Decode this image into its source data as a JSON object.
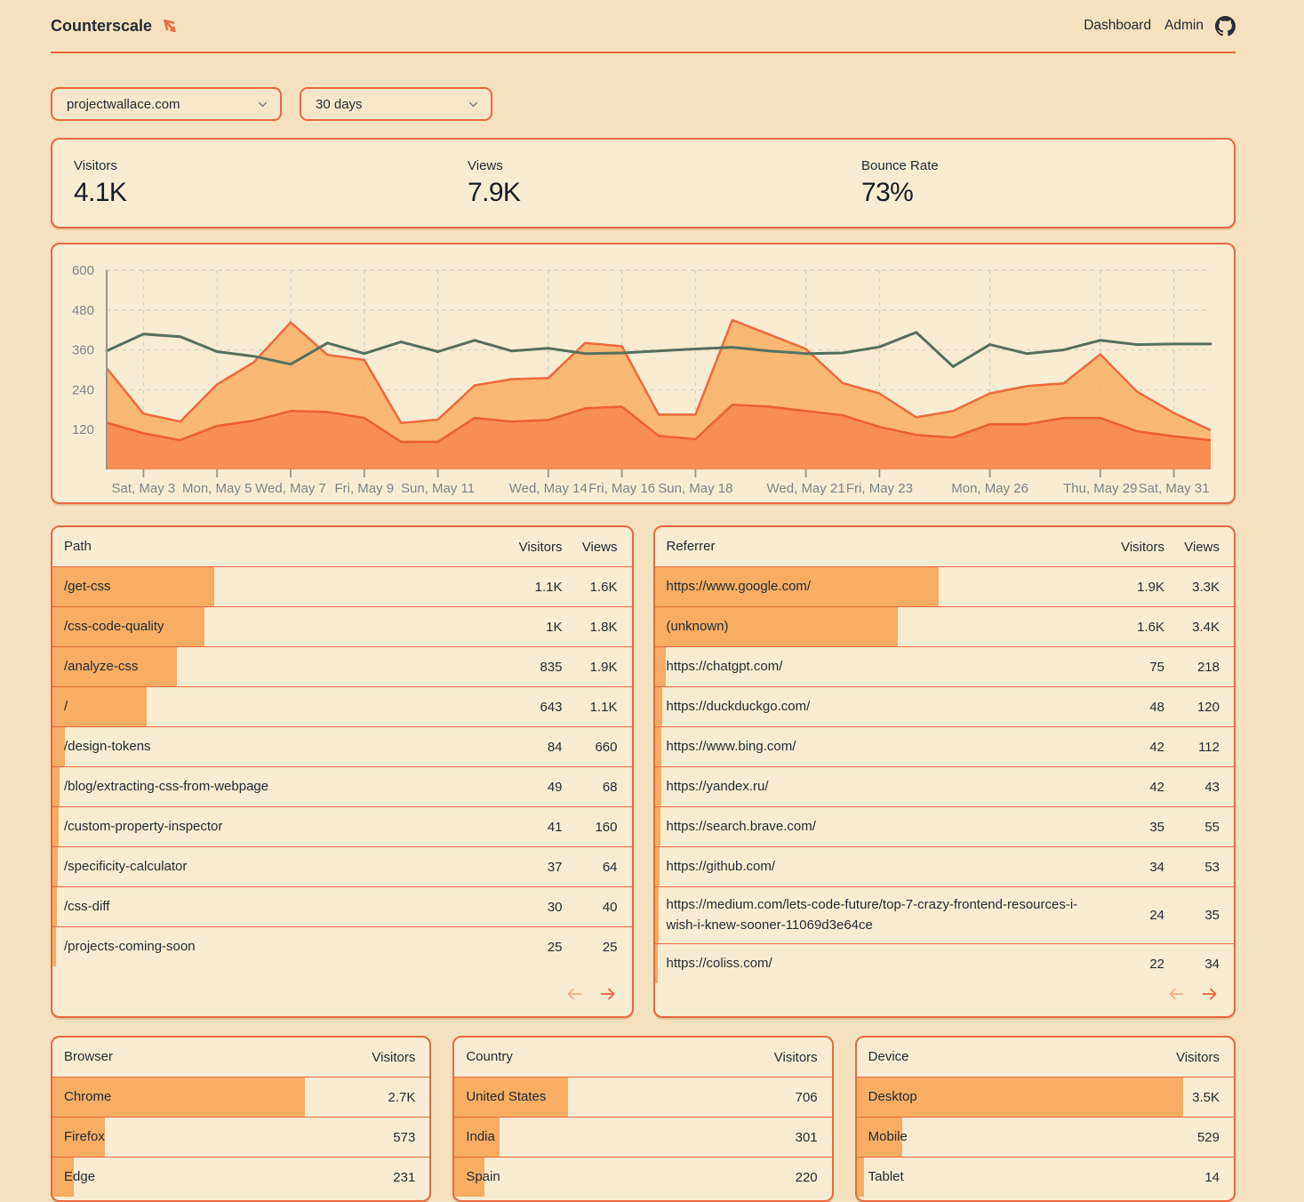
{
  "header": {
    "brand": "Counterscale",
    "nav": [
      {
        "label": "Dashboard"
      },
      {
        "label": "Admin"
      }
    ]
  },
  "controls": {
    "site": "projectwallace.com",
    "range": "30 days"
  },
  "stats": [
    {
      "label": "Visitors",
      "value": "4.1K"
    },
    {
      "label": "Views",
      "value": "7.9K"
    },
    {
      "label": "Bounce Rate",
      "value": "73%"
    }
  ],
  "chart_data": {
    "type": "area+line",
    "title": "",
    "xlabel": "date",
    "ylabel": "",
    "ylim": [
      0,
      600
    ],
    "yticks": [
      120,
      240,
      360,
      480,
      600
    ],
    "grid": true,
    "x_ticks": [
      {
        "index": 1,
        "label": "Sat, May 3"
      },
      {
        "index": 3,
        "label": "Mon, May 5"
      },
      {
        "index": 5,
        "label": "Wed, May 7"
      },
      {
        "index": 7,
        "label": "Fri, May 9"
      },
      {
        "index": 9,
        "label": "Sun, May 11"
      },
      {
        "index": 12,
        "label": "Wed, May 14"
      },
      {
        "index": 14,
        "label": "Fri, May 16"
      },
      {
        "index": 16,
        "label": "Sun, May 18"
      },
      {
        "index": 19,
        "label": "Wed, May 21"
      },
      {
        "index": 21,
        "label": "Fri, May 23"
      },
      {
        "index": 24,
        "label": "Mon, May 26"
      },
      {
        "index": 27,
        "label": "Thu, May 29"
      },
      {
        "index": 29,
        "label": "Sat, May 31"
      }
    ],
    "series": [
      {
        "name": "light-orange-area (views)",
        "type": "area",
        "fill": "#F8B269",
        "stroke": "#EE6A3C",
        "values": [
          305,
          168,
          144,
          256,
          323,
          443,
          345,
          330,
          140,
          150,
          253,
          272,
          275,
          381,
          371,
          165,
          165,
          450,
          407,
          363,
          260,
          229,
          157,
          176,
          229,
          251,
          259,
          347,
          234,
          170,
          118
        ]
      },
      {
        "name": "dark-orange-area (visitors)",
        "type": "area",
        "fill": "#F68A50",
        "stroke": "#EC5F33",
        "values": [
          141,
          109,
          88,
          131,
          147,
          176,
          173,
          155,
          83,
          83,
          155,
          144,
          149,
          184,
          189,
          101,
          91,
          195,
          189,
          176,
          163,
          128,
          104,
          96,
          136,
          136,
          155,
          155,
          115,
          100,
          88
        ]
      },
      {
        "name": "teal-line",
        "type": "line",
        "stroke": "#54705F",
        "values": [
          357,
          408,
          400,
          355,
          341,
          317,
          381,
          349,
          384,
          355,
          389,
          357,
          365,
          349,
          351,
          357,
          363,
          368,
          357,
          349,
          351,
          369,
          413,
          310,
          376,
          349,
          360,
          389,
          376,
          378,
          378
        ]
      }
    ],
    "legend": "none"
  },
  "tables": {
    "path": {
      "title": "Path",
      "columns": [
        "Visitors",
        "Views"
      ],
      "pagination": true,
      "rows": [
        {
          "label": "/get-css",
          "values": [
            "1.1K",
            "1.6K"
          ],
          "bar_pct": 28
        },
        {
          "label": "/css-code-quality",
          "values": [
            "1K",
            "1.8K"
          ],
          "bar_pct": 26.3
        },
        {
          "label": "/analyze-css",
          "values": [
            "835",
            "1.9K"
          ],
          "bar_pct": 21.5
        },
        {
          "label": "/",
          "values": [
            "643",
            "1.1K"
          ],
          "bar_pct": 16.3
        },
        {
          "label": "/design-tokens",
          "values": [
            "84",
            "660"
          ],
          "bar_pct": 2.1
        },
        {
          "label": "/blog/extracting-css-from-webpage",
          "values": [
            "49",
            "68"
          ],
          "bar_pct": 1.2
        },
        {
          "label": "/custom-property-inspector",
          "values": [
            "41",
            "160"
          ],
          "bar_pct": 1.0
        },
        {
          "label": "/specificity-calculator",
          "values": [
            "37",
            "64"
          ],
          "bar_pct": 0.9
        },
        {
          "label": "/css-diff",
          "values": [
            "30",
            "40"
          ],
          "bar_pct": 0.8
        },
        {
          "label": "/projects-coming-soon",
          "values": [
            "25",
            "25"
          ],
          "bar_pct": 0.65
        }
      ]
    },
    "referrer": {
      "title": "Referrer",
      "columns": [
        "Visitors",
        "Views"
      ],
      "pagination": true,
      "rows": [
        {
          "label": "https://www.google.com/",
          "values": [
            "1.9K",
            "3.3K"
          ],
          "bar_pct": 49
        },
        {
          "label": "(unknown)",
          "values": [
            "1.6K",
            "3.4K"
          ],
          "bar_pct": 42
        },
        {
          "label": "https://chatgpt.com/",
          "values": [
            "75",
            "218"
          ],
          "bar_pct": 1.9
        },
        {
          "label": "https://duckduckgo.com/",
          "values": [
            "48",
            "120"
          ],
          "bar_pct": 1.3
        },
        {
          "label": "https://www.bing.com/",
          "values": [
            "42",
            "112"
          ],
          "bar_pct": 1.1
        },
        {
          "label": "https://yandex.ru/",
          "values": [
            "42",
            "43"
          ],
          "bar_pct": 1.1
        },
        {
          "label": "https://search.brave.com/",
          "values": [
            "35",
            "55"
          ],
          "bar_pct": 0.95
        },
        {
          "label": "https://github.com/",
          "values": [
            "34",
            "53"
          ],
          "bar_pct": 0.9
        },
        {
          "label": "https://medium.com/lets-code-future/top-7-crazy-frontend-resources-i-wish-i-knew-sooner-11069d3e64ce",
          "values": [
            "24",
            "35"
          ],
          "bar_pct": 0.7
        },
        {
          "label": "https://coliss.com/",
          "values": [
            "22",
            "34"
          ],
          "bar_pct": 0.6
        }
      ]
    },
    "browser": {
      "title": "Browser",
      "columns": [
        "Visitors"
      ],
      "pagination": false,
      "rows": [
        {
          "label": "Chrome",
          "values": [
            "2.7K"
          ],
          "bar_pct": 67
        },
        {
          "label": "Firefox",
          "values": [
            "573"
          ],
          "bar_pct": 14
        },
        {
          "label": "Edge",
          "values": [
            "231"
          ],
          "bar_pct": 5.6
        }
      ]
    },
    "country": {
      "title": "Country",
      "columns": [
        "Visitors"
      ],
      "pagination": false,
      "rows": [
        {
          "label": "United States",
          "values": [
            "706"
          ],
          "bar_pct": 30
        },
        {
          "label": "India",
          "values": [
            "301"
          ],
          "bar_pct": 12
        },
        {
          "label": "Spain",
          "values": [
            "220"
          ],
          "bar_pct": 8
        }
      ]
    },
    "device": {
      "title": "Device",
      "columns": [
        "Visitors"
      ],
      "pagination": false,
      "rows": [
        {
          "label": "Desktop",
          "values": [
            "3.5K"
          ],
          "bar_pct": 86.5
        },
        {
          "label": "Mobile",
          "values": [
            "529"
          ],
          "bar_pct": 12
        },
        {
          "label": "Tablet",
          "values": [
            "14"
          ],
          "bar_pct": 2
        }
      ]
    }
  },
  "colors": {
    "page_bg": "#F5E1BD",
    "card_bg": "#F8ECD2",
    "accent_border": "#E96840",
    "table_bar": "#F7AD63",
    "area_light": "#F8B269",
    "area_dark": "#F68A50",
    "line_teal": "#54705F",
    "text_dark": "#232C37",
    "axis_gray": "#7D858B",
    "pager_disabled": "#F3B183",
    "pager_active": "#E95F38"
  }
}
